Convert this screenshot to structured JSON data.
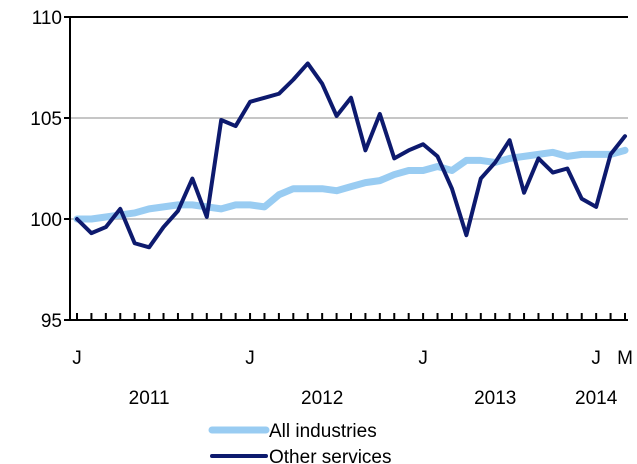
{
  "chart_data": {
    "type": "line",
    "title": "",
    "xlabel": "",
    "ylabel": "",
    "ylim": [
      95,
      110
    ],
    "yticks": [
      "95",
      "100",
      "105",
      "110"
    ],
    "grid": "horizontal",
    "legend_position": "bottom",
    "x": [
      "2011-01",
      "2011-02",
      "2011-03",
      "2011-04",
      "2011-05",
      "2011-06",
      "2011-07",
      "2011-08",
      "2011-09",
      "2011-10",
      "2011-11",
      "2011-12",
      "2012-01",
      "2012-02",
      "2012-03",
      "2012-04",
      "2012-05",
      "2012-06",
      "2012-07",
      "2012-08",
      "2012-09",
      "2012-10",
      "2012-11",
      "2012-12",
      "2013-01",
      "2013-02",
      "2013-03",
      "2013-04",
      "2013-05",
      "2013-06",
      "2013-07",
      "2013-08",
      "2013-09",
      "2013-10",
      "2013-11",
      "2013-12",
      "2014-01",
      "2014-02",
      "2014-03"
    ],
    "month_labels": [
      {
        "x": "2011-01",
        "text": "J"
      },
      {
        "x": "2012-01",
        "text": "J"
      },
      {
        "x": "2013-01",
        "text": "J"
      },
      {
        "x": "2014-01",
        "text": "J"
      },
      {
        "x": "2014-03",
        "text": "M"
      }
    ],
    "year_labels": [
      {
        "x": "2011-06",
        "text": "2011"
      },
      {
        "x": "2012-06",
        "text": "2012"
      },
      {
        "x": "2013-06",
        "text": "2013"
      },
      {
        "x": "2014-01",
        "text": "2014"
      }
    ],
    "series": [
      {
        "name": "All industries",
        "color": "#99ccf2",
        "values": [
          100.0,
          100.0,
          100.1,
          100.2,
          100.3,
          100.5,
          100.6,
          100.7,
          100.7,
          100.6,
          100.5,
          100.7,
          100.7,
          100.6,
          101.2,
          101.5,
          101.5,
          101.5,
          101.4,
          101.6,
          101.8,
          101.9,
          102.2,
          102.4,
          102.4,
          102.6,
          102.4,
          102.9,
          102.9,
          102.8,
          103.0,
          103.1,
          103.2,
          103.3,
          103.1,
          103.2,
          103.2,
          103.2,
          103.4
        ]
      },
      {
        "name": "Other services",
        "color": "#0d1a6e",
        "values": [
          100.0,
          99.3,
          99.6,
          100.5,
          98.8,
          98.6,
          99.6,
          100.4,
          102.0,
          100.1,
          104.9,
          104.6,
          105.8,
          106.0,
          106.2,
          106.9,
          107.7,
          106.7,
          105.1,
          106.0,
          103.4,
          105.2,
          103.0,
          103.4,
          103.7,
          103.1,
          101.5,
          99.2,
          102.0,
          102.8,
          103.9,
          101.3,
          103.0,
          102.3,
          102.5,
          101.0,
          100.6,
          103.2,
          104.1
        ]
      }
    ]
  }
}
